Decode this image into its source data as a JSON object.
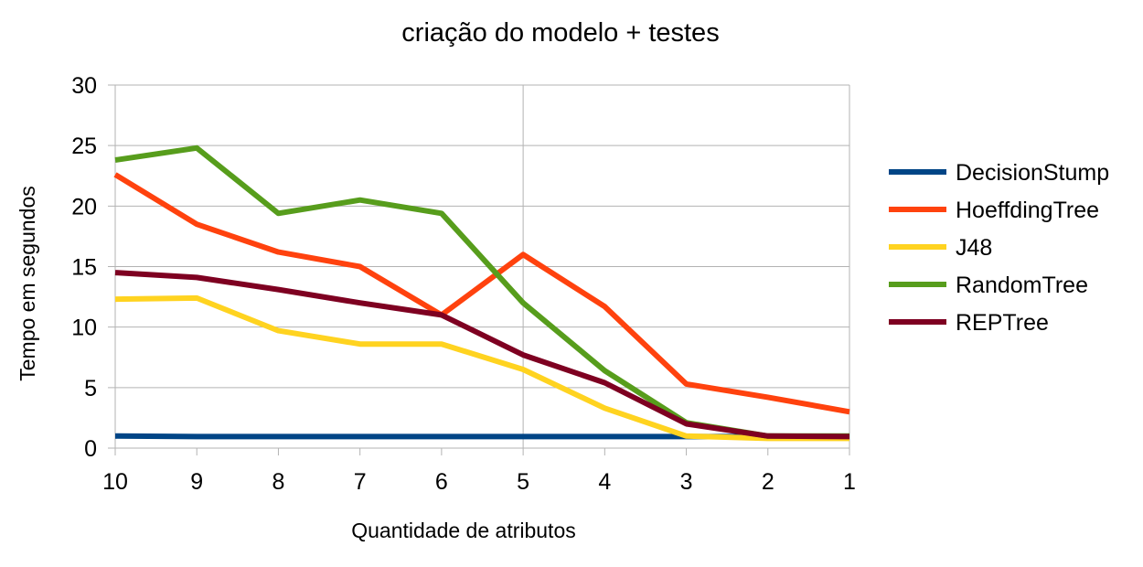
{
  "chart_data": {
    "type": "line",
    "title": "criação do modelo + testes",
    "xlabel": "Quantidade de atributos",
    "ylabel": "Tempo em segundos",
    "categories": [
      "10",
      "9",
      "8",
      "7",
      "6",
      "5",
      "4",
      "3",
      "2",
      "1"
    ],
    "ylim": [
      0,
      30
    ],
    "yticks": [
      0,
      5,
      10,
      15,
      20,
      25,
      30
    ],
    "grid": true,
    "legend_position": "right",
    "series": [
      {
        "name": "DecisionStump",
        "color": "#004586",
        "values": [
          1.0,
          0.95,
          0.95,
          0.95,
          0.95,
          0.95,
          0.95,
          0.95,
          0.95,
          0.95
        ]
      },
      {
        "name": "HoeffdingTree",
        "color": "#ff420e",
        "values": [
          22.6,
          18.5,
          16.2,
          15.0,
          11.0,
          16.0,
          11.7,
          5.3,
          4.2,
          3.0
        ]
      },
      {
        "name": "J48",
        "color": "#ffd320",
        "values": [
          12.3,
          12.4,
          9.7,
          8.6,
          8.6,
          6.5,
          3.3,
          1.0,
          0.8,
          0.8
        ]
      },
      {
        "name": "RandomTree",
        "color": "#579d1c",
        "values": [
          23.8,
          24.8,
          19.4,
          20.5,
          19.4,
          12.0,
          6.4,
          2.1,
          1.0,
          1.0
        ]
      },
      {
        "name": "REPTree",
        "color": "#7e0021",
        "values": [
          14.5,
          14.1,
          13.1,
          12.0,
          11.0,
          7.7,
          5.4,
          2.0,
          1.0,
          0.95
        ]
      }
    ]
  }
}
